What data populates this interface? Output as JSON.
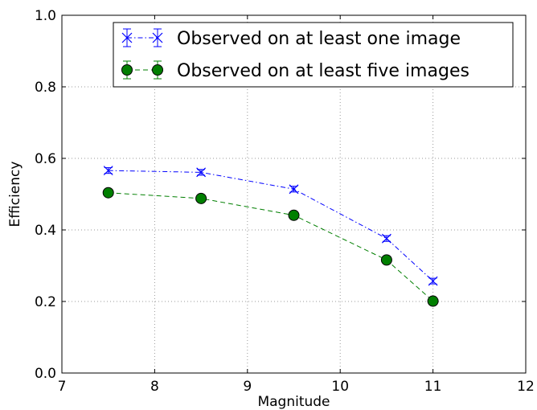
{
  "chart_data": {
    "type": "line",
    "title": "",
    "xlabel": "Magnitude",
    "ylabel": "Efficiency",
    "xlim": [
      7,
      12
    ],
    "ylim": [
      0.0,
      1.0
    ],
    "xticks": [
      7,
      8,
      9,
      10,
      11,
      12
    ],
    "yticks": [
      0.0,
      0.2,
      0.4,
      0.6,
      0.8,
      1.0
    ],
    "xtick_labels": [
      "7",
      "8",
      "9",
      "10",
      "11",
      "12"
    ],
    "ytick_labels": [
      "0.0",
      "0.2",
      "0.4",
      "0.6",
      "0.8",
      "1.0"
    ],
    "grid": true,
    "legend_position": "top-right",
    "series": [
      {
        "name": "Observed on at least one image",
        "color": "#0000ff",
        "marker": "x",
        "linestyle": "dash-dot",
        "x": [
          7.5,
          8.5,
          9.5,
          10.5,
          11.0
        ],
        "y": [
          0.566,
          0.561,
          0.514,
          0.376,
          0.257
        ],
        "yerr": [
          0.008,
          0.008,
          0.008,
          0.008,
          0.008
        ]
      },
      {
        "name": "Observed on at least five images",
        "color": "#007f00",
        "marker": "circle",
        "linestyle": "dashed",
        "x": [
          7.5,
          8.5,
          9.5,
          10.5,
          11.0
        ],
        "y": [
          0.504,
          0.488,
          0.441,
          0.316,
          0.201
        ],
        "yerr": [
          0.008,
          0.008,
          0.008,
          0.008,
          0.008
        ]
      }
    ]
  }
}
